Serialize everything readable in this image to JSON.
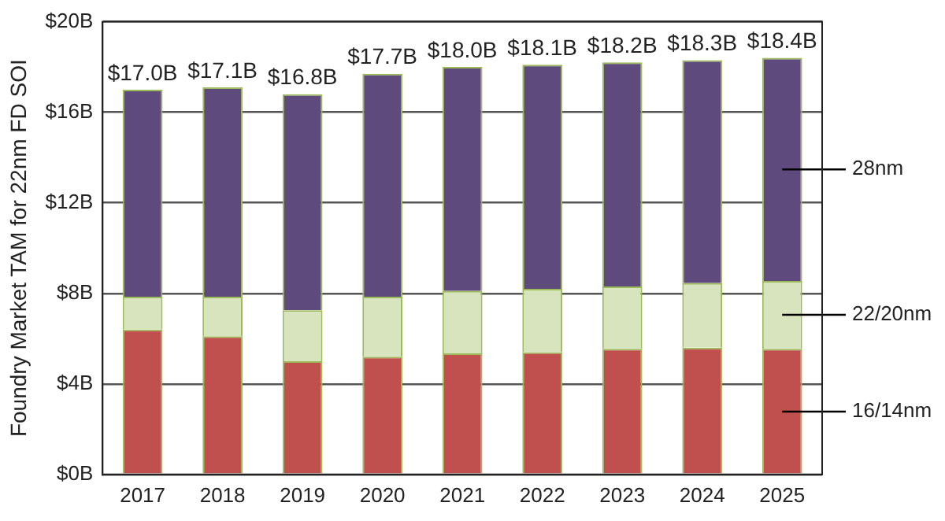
{
  "chart_data": {
    "type": "bar",
    "stacked": true,
    "ylabel": "Foundry Market TAM for 22nm FD SOI",
    "categories": [
      "2017",
      "2018",
      "2019",
      "2020",
      "2021",
      "2022",
      "2023",
      "2024",
      "2025"
    ],
    "series": [
      {
        "name": "16/14nm",
        "color": "#c0504d",
        "values": [
          6.4,
          6.1,
          5.0,
          5.2,
          5.35,
          5.4,
          5.55,
          5.6,
          5.55
        ]
      },
      {
        "name": "22/20nm",
        "color": "#d7e4bd",
        "values": [
          1.45,
          1.75,
          2.25,
          2.65,
          2.75,
          2.8,
          2.75,
          2.85,
          3.0
        ]
      },
      {
        "name": "28nm",
        "color": "#5f4a7e",
        "values": [
          9.15,
          9.25,
          9.55,
          9.85,
          9.9,
          9.9,
          9.9,
          9.85,
          9.85
        ]
      }
    ],
    "totals": [
      "$17.0B",
      "$17.1B",
      "$16.8B",
      "$17.7B",
      "$18.0B",
      "$18.1B",
      "$18.2B",
      "$18.3B",
      "$18.4B"
    ],
    "ylim": [
      0,
      20
    ],
    "yticks": [
      {
        "value": 0,
        "label": "$0B"
      },
      {
        "value": 4,
        "label": "$4B"
      },
      {
        "value": 8,
        "label": "$8B"
      },
      {
        "value": 12,
        "label": "$12B"
      },
      {
        "value": 16,
        "label": "$16B"
      },
      {
        "value": 20,
        "label": "$20B"
      }
    ],
    "grid": "y",
    "legend": "right"
  }
}
